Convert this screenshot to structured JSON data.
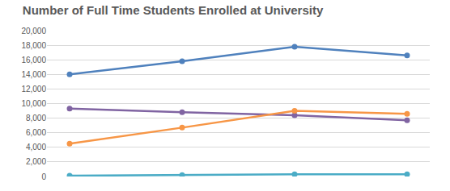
{
  "chart_data": {
    "type": "line",
    "title": "Number of Full Time Students Enrolled at University",
    "categories": [
      null,
      null,
      null,
      null
    ],
    "series": [
      {
        "color": "#4f81bd",
        "values": [
          14000,
          15800,
          17800,
          16600
        ]
      },
      {
        "color": "#8064a2",
        "values": [
          9300,
          8800,
          8400,
          7700
        ]
      },
      {
        "color": "#f79646",
        "values": [
          4500,
          6700,
          9000,
          8600
        ]
      },
      {
        "color": "#4bacc6",
        "values": [
          100,
          200,
          300,
          300
        ]
      }
    ],
    "ylim": [
      0,
      20000
    ],
    "yticks": [
      0,
      {
        "value": 2000,
        "label": "2,000"
      },
      {
        "value": 4000,
        "label": "4,000"
      },
      {
        "value": 6000,
        "label": "6,000"
      },
      {
        "value": 8000,
        "label": "8,000"
      },
      {
        "value": 10000,
        "label": "10,000"
      },
      {
        "value": 12000,
        "label": "12,000"
      },
      {
        "value": 14000,
        "label": "14,000"
      },
      {
        "value": 16000,
        "label": "16,000"
      },
      {
        "value": 18000,
        "label": "18,000"
      },
      {
        "value": 20000,
        "label": "20,000"
      }
    ],
    "grid": true,
    "marker": "circle",
    "tick_labels": "y"
  }
}
